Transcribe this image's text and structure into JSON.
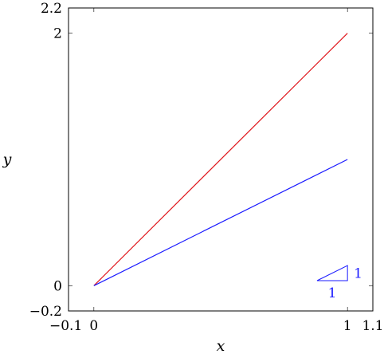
{
  "chart_data": {
    "type": "line",
    "title": "",
    "xlabel": "x",
    "ylabel": "y",
    "xlim": [
      -0.1,
      1.1
    ],
    "ylim": [
      -0.2,
      2.2
    ],
    "xticks": [
      {
        "value": -0.1,
        "label": "−0.1"
      },
      {
        "value": 0,
        "label": "0"
      },
      {
        "value": 1,
        "label": "1"
      },
      {
        "value": 1.1,
        "label": "1.1"
      }
    ],
    "yticks": [
      {
        "value": -0.2,
        "label": "−0.2"
      },
      {
        "value": 0,
        "label": "0"
      },
      {
        "value": 2,
        "label": "2"
      },
      {
        "value": 2.2,
        "label": "2.2"
      }
    ],
    "grid": false,
    "legend": "none",
    "series": [
      {
        "color": "#e0161c",
        "points": [
          [
            0,
            0
          ],
          [
            1,
            2
          ]
        ]
      },
      {
        "color": "#1a1aff",
        "points": [
          [
            0,
            0
          ],
          [
            1,
            1
          ]
        ]
      }
    ],
    "slope_triangle": {
      "color": "#1a1aff",
      "vertices": [
        [
          0.88,
          0.04
        ],
        [
          1.0,
          0.04
        ],
        [
          1.0,
          0.16
        ]
      ],
      "run_label": "1",
      "rise_label": "1"
    }
  }
}
